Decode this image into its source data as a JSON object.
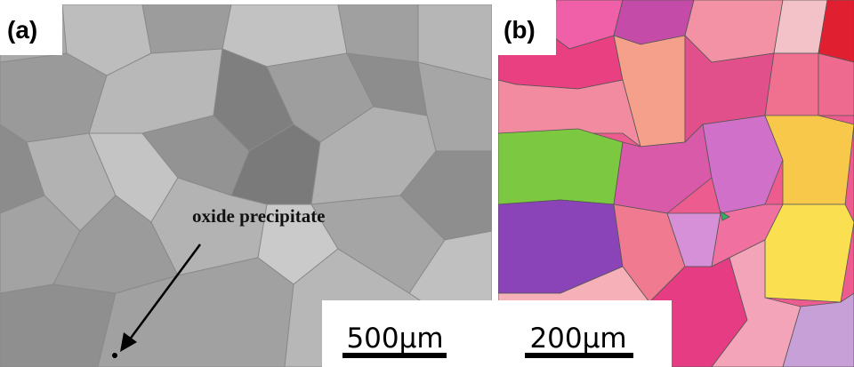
{
  "panels": [
    {
      "label": "(a)",
      "annotation": "oxide precipitate",
      "scale_bar": "500μm"
    },
    {
      "label": "(b)",
      "scale_bar": "200μm"
    }
  ]
}
